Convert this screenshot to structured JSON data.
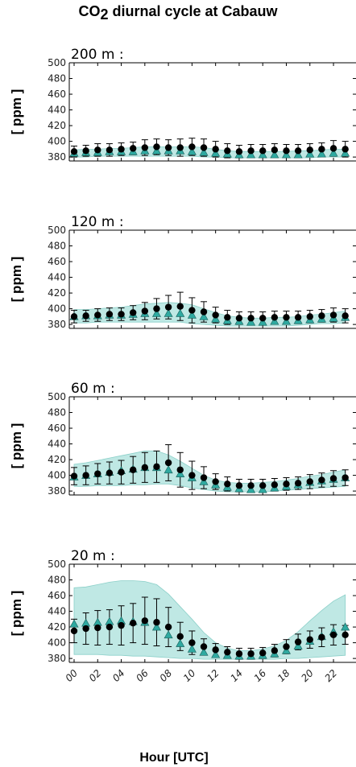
{
  "figure": {
    "title_main": "CO",
    "title_sub": "2",
    "title_rest": " diurnal cycle at Cabauw",
    "xlabel": "Hour [UTC]",
    "ylabel": "[ ppm ]"
  },
  "chart_data": [
    {
      "type": "scatter",
      "title": "200 m :",
      "ylabel": "[ ppm ]",
      "ylim": [
        375,
        500
      ],
      "yticks": [
        380,
        400,
        420,
        440,
        460,
        480,
        500
      ],
      "xticks": [
        "00",
        "02",
        "04",
        "06",
        "08",
        "10",
        "12",
        "14",
        "16",
        "18",
        "20",
        "22"
      ],
      "x": [
        0,
        1,
        2,
        3,
        4,
        5,
        6,
        7,
        8,
        9,
        10,
        11,
        12,
        13,
        14,
        15,
        16,
        17,
        18,
        19,
        20,
        21,
        22,
        23
      ],
      "series": [
        {
          "marker": "circle",
          "color": "#000000",
          "values": [
            387,
            388,
            389,
            389,
            390,
            391,
            392,
            393,
            392,
            392,
            393,
            392,
            390,
            388,
            387,
            388,
            388,
            389,
            388,
            388,
            389,
            390,
            391,
            390
          ],
          "err": [
            7,
            7,
            8,
            8,
            8,
            8,
            10,
            10,
            10,
            11,
            11,
            11,
            10,
            9,
            8,
            8,
            8,
            8,
            8,
            8,
            8,
            8,
            10,
            10
          ]
        },
        {
          "marker": "triangle",
          "color": "#2fa9a0",
          "values": [
            385,
            386,
            386,
            387,
            387,
            387,
            388,
            388,
            388,
            388,
            387,
            386,
            385,
            384,
            383,
            383,
            383,
            383,
            383,
            383,
            384,
            384,
            385,
            385
          ],
          "band_low": [
            380,
            380,
            381,
            381,
            381,
            381,
            381,
            381,
            381,
            381,
            381,
            380,
            380,
            379,
            379,
            379,
            379,
            379,
            379,
            379,
            379,
            380,
            380,
            380
          ],
          "band_high": [
            389,
            390,
            390,
            391,
            391,
            392,
            393,
            393,
            393,
            393,
            393,
            392,
            390,
            388,
            387,
            387,
            387,
            387,
            387,
            388,
            388,
            389,
            390,
            390
          ]
        }
      ]
    },
    {
      "type": "scatter",
      "title": "120 m :",
      "ylabel": "[ ppm ]",
      "ylim": [
        375,
        500
      ],
      "yticks": [
        380,
        400,
        420,
        440,
        460,
        480,
        500
      ],
      "xticks": [
        "00",
        "02",
        "04",
        "06",
        "08",
        "10",
        "12",
        "14",
        "16",
        "18",
        "20",
        "22"
      ],
      "x": [
        0,
        1,
        2,
        3,
        4,
        5,
        6,
        7,
        8,
        9,
        10,
        11,
        12,
        13,
        14,
        15,
        16,
        17,
        18,
        19,
        20,
        21,
        22,
        23
      ],
      "series": [
        {
          "marker": "circle",
          "color": "#000000",
          "values": [
            390,
            391,
            392,
            393,
            393,
            395,
            397,
            400,
            402,
            403,
            398,
            396,
            392,
            389,
            388,
            388,
            388,
            389,
            389,
            389,
            390,
            391,
            392,
            391
          ],
          "err": [
            8,
            7,
            8,
            8,
            8,
            9,
            11,
            13,
            15,
            18,
            16,
            13,
            10,
            9,
            8,
            8,
            8,
            8,
            8,
            8,
            8,
            8,
            9,
            9
          ]
        },
        {
          "marker": "triangle",
          "color": "#2fa9a0",
          "values": [
            390,
            391,
            391,
            392,
            392,
            393,
            394,
            394,
            394,
            394,
            392,
            390,
            387,
            385,
            384,
            383,
            383,
            384,
            384,
            385,
            386,
            387,
            388,
            389
          ],
          "band_low": [
            382,
            382,
            383,
            383,
            383,
            383,
            383,
            383,
            383,
            383,
            381,
            380,
            379,
            378,
            378,
            378,
            378,
            378,
            378,
            379,
            380,
            381,
            381,
            382
          ],
          "band_high": [
            399,
            399,
            400,
            401,
            402,
            404,
            406,
            407,
            408,
            407,
            405,
            400,
            395,
            391,
            389,
            388,
            388,
            389,
            389,
            390,
            392,
            393,
            395,
            397
          ]
        }
      ]
    },
    {
      "type": "scatter",
      "title": "60 m :",
      "ylabel": "[ ppm ]",
      "ylim": [
        375,
        500
      ],
      "yticks": [
        380,
        400,
        420,
        440,
        460,
        480,
        500
      ],
      "xticks": [
        "00",
        "02",
        "04",
        "06",
        "08",
        "10",
        "12",
        "14",
        "16",
        "18",
        "20",
        "22"
      ],
      "x": [
        0,
        1,
        2,
        3,
        4,
        5,
        6,
        7,
        8,
        9,
        10,
        11,
        12,
        13,
        14,
        15,
        16,
        17,
        18,
        19,
        20,
        21,
        22,
        23
      ],
      "series": [
        {
          "marker": "circle",
          "color": "#000000",
          "values": [
            399,
            400,
            402,
            403,
            404,
            407,
            410,
            411,
            416,
            407,
            400,
            397,
            392,
            389,
            387,
            387,
            387,
            388,
            389,
            390,
            392,
            394,
            396,
            397
          ],
          "err": [
            11,
            12,
            13,
            14,
            15,
            17,
            19,
            20,
            23,
            22,
            18,
            14,
            10,
            9,
            8,
            8,
            8,
            8,
            8,
            8,
            9,
            9,
            10,
            10
          ]
        },
        {
          "marker": "triangle",
          "color": "#2fa9a0",
          "values": [
            398,
            400,
            402,
            404,
            406,
            408,
            410,
            410,
            407,
            402,
            397,
            392,
            388,
            385,
            383,
            382,
            382,
            384,
            386,
            388,
            391,
            393,
            395,
            397
          ],
          "band_low": [
            386,
            386,
            387,
            387,
            387,
            388,
            388,
            389,
            389,
            387,
            384,
            382,
            380,
            379,
            379,
            379,
            379,
            380,
            381,
            382,
            383,
            384,
            385,
            386
          ],
          "band_high": [
            414,
            416,
            419,
            422,
            425,
            428,
            431,
            431,
            426,
            418,
            409,
            400,
            394,
            391,
            390,
            390,
            391,
            392,
            394,
            396,
            399,
            401,
            404,
            407
          ]
        }
      ]
    },
    {
      "type": "scatter",
      "title": "20 m :",
      "ylabel": "[ ppm ]",
      "ylim": [
        375,
        500
      ],
      "yticks": [
        380,
        400,
        420,
        440,
        460,
        480,
        500
      ],
      "xticks": [
        "00",
        "02",
        "04",
        "06",
        "08",
        "10",
        "12",
        "14",
        "16",
        "18",
        "20",
        "22"
      ],
      "x": [
        0,
        1,
        2,
        3,
        4,
        5,
        6,
        7,
        8,
        9,
        10,
        11,
        12,
        13,
        14,
        15,
        16,
        17,
        18,
        19,
        20,
        21,
        22,
        23
      ],
      "series": [
        {
          "marker": "circle",
          "color": "#000000",
          "values": [
            415,
            418,
            419,
            420,
            422,
            425,
            428,
            426,
            420,
            408,
            400,
            395,
            391,
            388,
            386,
            386,
            387,
            390,
            395,
            401,
            404,
            407,
            410,
            410
          ],
          "err": [
            15,
            20,
            22,
            22,
            25,
            25,
            30,
            30,
            25,
            18,
            15,
            10,
            8,
            7,
            7,
            7,
            7,
            8,
            9,
            10,
            11,
            12,
            13,
            12
          ]
        },
        {
          "marker": "triangle",
          "color": "#2fa9a0",
          "values": [
            424,
            425,
            426,
            427,
            428,
            427,
            426,
            420,
            410,
            399,
            392,
            388,
            385,
            384,
            383,
            383,
            384,
            386,
            390,
            396,
            402,
            408,
            414,
            420
          ],
          "band_low": [
            385,
            385,
            385,
            384,
            384,
            383,
            383,
            382,
            381,
            380,
            380,
            379,
            379,
            379,
            379,
            379,
            379,
            379,
            380,
            380,
            381,
            382,
            383,
            384
          ],
          "band_high": [
            470,
            471,
            474,
            477,
            479,
            479,
            478,
            474,
            462,
            446,
            430,
            413,
            400,
            393,
            390,
            390,
            392,
            396,
            403,
            414,
            428,
            441,
            453,
            461
          ]
        }
      ]
    }
  ]
}
